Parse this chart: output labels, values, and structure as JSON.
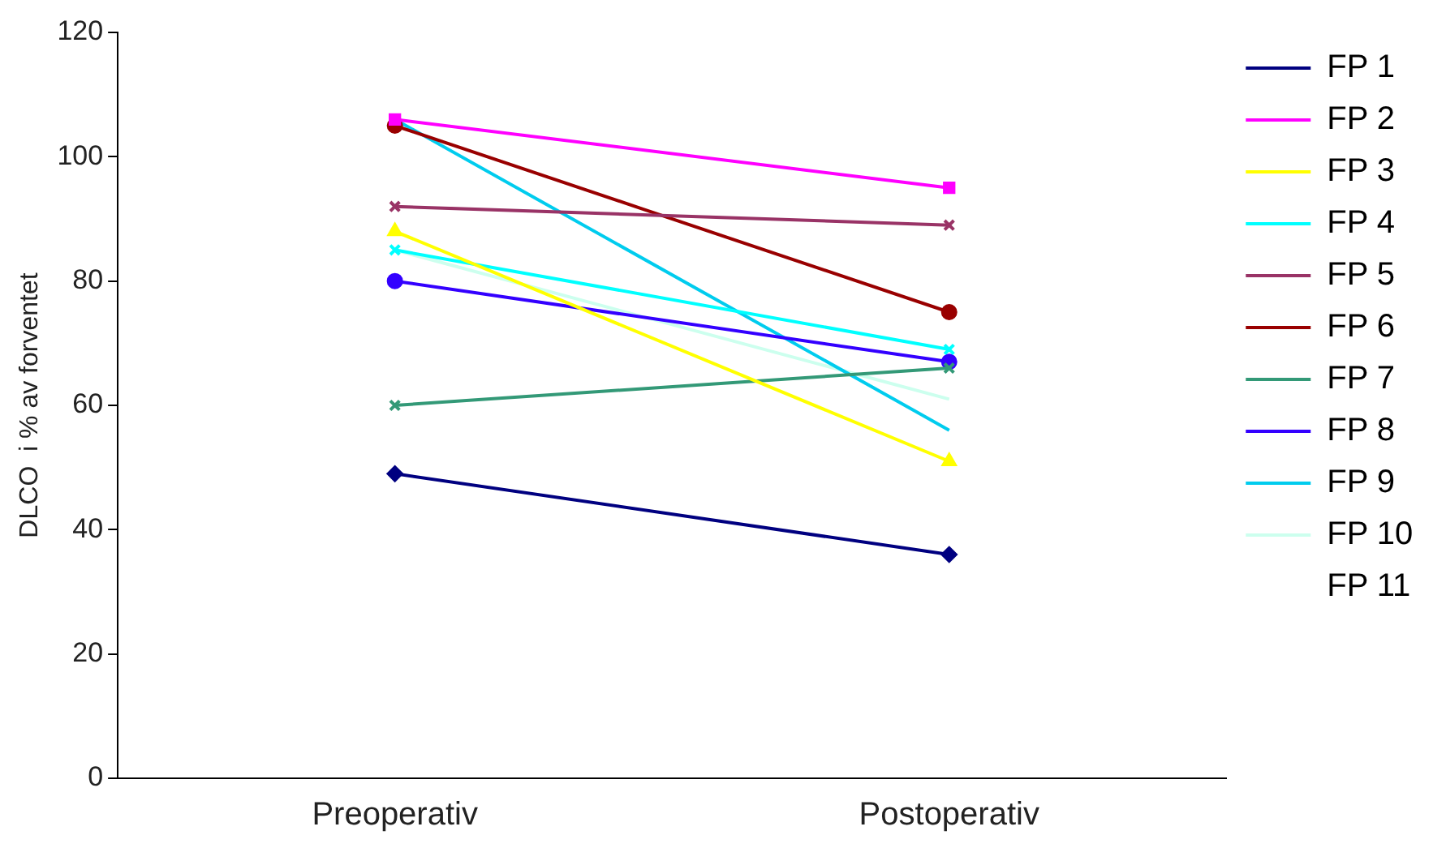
{
  "chart_data": {
    "type": "line",
    "ylabel": "DLCO  i % av forventet",
    "categories": [
      "Preoperativ",
      "Postoperativ"
    ],
    "ylim": [
      0,
      120
    ],
    "yticks": [
      0,
      20,
      40,
      60,
      80,
      100,
      120
    ],
    "grid": false,
    "legend": "right",
    "line_style": "solid",
    "series": [
      {
        "name": "FP 1",
        "color": "#000080",
        "marker": "diamond",
        "values": [
          49,
          36
        ]
      },
      {
        "name": "FP 2",
        "color": "#ff00ff",
        "marker": "square",
        "values": [
          106,
          95
        ]
      },
      {
        "name": "FP 3",
        "color": "#ffff00",
        "marker": "triangle",
        "values": [
          88,
          51
        ]
      },
      {
        "name": "FP 4",
        "color": "#00ffff",
        "marker": "cross",
        "values": [
          85,
          69
        ]
      },
      {
        "name": "FP 5",
        "color": "#993366",
        "marker": "cross",
        "values": [
          92,
          89
        ]
      },
      {
        "name": "FP 6",
        "color": "#990000",
        "marker": "circle",
        "values": [
          105,
          75
        ]
      },
      {
        "name": "FP 7",
        "color": "#339977",
        "marker": "cross",
        "values": [
          60,
          66
        ]
      },
      {
        "name": "FP 8",
        "color": "#3300ff",
        "marker": "circle",
        "values": [
          80,
          67
        ]
      },
      {
        "name": "FP 9",
        "color": "#00ccee",
        "marker": "none",
        "values": [
          106,
          56
        ]
      },
      {
        "name": "FP 10",
        "color": "#ccffee",
        "marker": "none",
        "values": [
          85,
          61
        ]
      },
      {
        "name": "FP 11",
        "values": [
          null,
          null
        ]
      }
    ]
  }
}
